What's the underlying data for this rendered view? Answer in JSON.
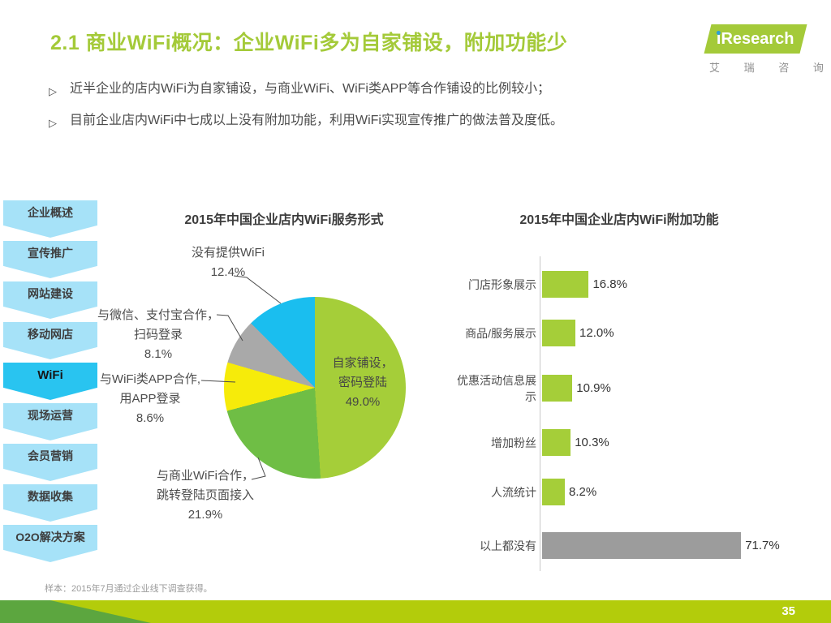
{
  "header": {
    "title": "2.1 商业WiFi概况：企业WiFi多为自家铺设，附加功能少",
    "logo": {
      "brand_i": "i",
      "brand_rest": "Research",
      "subtext": "艾 瑞 咨 询"
    }
  },
  "bullets": {
    "marker": "▷",
    "items": [
      "近半企业的店内WiFi为自家铺设，与商业WiFi、WiFi类APP等合作铺设的比例较小；",
      "目前企业店内WiFi中七成以上没有附加功能，利用WiFi实现宣传推广的做法普及度低。"
    ]
  },
  "sidebar": {
    "items": [
      {
        "label": "企业概述",
        "active": false
      },
      {
        "label": "宣传推广",
        "active": false
      },
      {
        "label": "网站建设",
        "active": false
      },
      {
        "label": "移动网店",
        "active": false
      },
      {
        "label": "WiFi",
        "active": true
      },
      {
        "label": "现场运营",
        "active": false
      },
      {
        "label": "会员营销",
        "active": false
      },
      {
        "label": "数据收集",
        "active": false
      },
      {
        "label": "O2O解决方案",
        "active": false
      }
    ]
  },
  "chart_data": [
    {
      "type": "pie",
      "title": "2015年中国企业店内WiFi服务形式",
      "slices": [
        {
          "label": "自家铺设，密码登陆",
          "value": 49.0,
          "color": "#A5CE39",
          "lines": [
            "自家铺设，",
            "密码登陆",
            "49.0%"
          ]
        },
        {
          "label": "与商业WiFi合作，跳转登陆页面接入",
          "value": 21.9,
          "color": "#6FBE45",
          "lines": [
            "与商业WiFi合作，",
            "跳转登陆页面接入",
            "21.9%"
          ]
        },
        {
          "label": "与WiFi类APP合作，用APP登录",
          "value": 8.6,
          "color": "#F6EB0A",
          "lines": [
            "与WiFi类APP合作,",
            "用APP登录",
            "8.6%"
          ]
        },
        {
          "label": "与微信、支付宝合作，扫码登录",
          "value": 8.1,
          "color": "#A9A9A9",
          "lines": [
            "与微信、支付宝合作，",
            "扫码登录",
            "8.1%"
          ]
        },
        {
          "label": "没有提供WiFi",
          "value": 12.4,
          "color": "#1ABEEF",
          "lines": [
            "没有提供WiFi",
            "12.4%"
          ]
        }
      ],
      "legend_position": "callout-labels"
    },
    {
      "type": "bar",
      "orientation": "horizontal",
      "title": "2015年中国企业店内WiFi附加功能",
      "categories": [
        "门店形象展示",
        "商品/服务展示",
        "优惠活动信息展示",
        "增加粉丝",
        "人流统计",
        "以上都没有"
      ],
      "values": [
        16.8,
        12.0,
        10.9,
        10.3,
        8.2,
        71.7
      ],
      "value_labels": [
        "16.8%",
        "12.0%",
        "10.9%",
        "10.3%",
        "8.2%",
        "71.7%"
      ],
      "colors": [
        "#A5CE39",
        "#A5CE39",
        "#A5CE39",
        "#A5CE39",
        "#A5CE39",
        "#9C9C9C"
      ],
      "xlim": [
        0,
        80
      ],
      "grid": false
    }
  ],
  "footer": {
    "note": "样本：2015年7月通过企业线下调查获得。",
    "page_number": "35"
  }
}
